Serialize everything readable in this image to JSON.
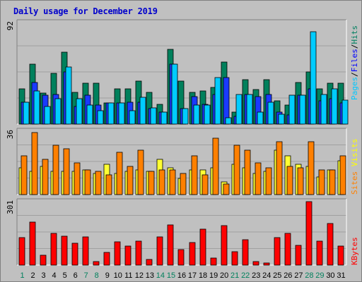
{
  "chart_data": {
    "type": "bar",
    "title": "Daily usage for December 2019",
    "categories": [
      "1",
      "2",
      "3",
      "4",
      "5",
      "6",
      "7",
      "8",
      "9",
      "10",
      "11",
      "12",
      "13",
      "14",
      "15",
      "16",
      "17",
      "18",
      "19",
      "20",
      "21",
      "22",
      "23",
      "24",
      "25",
      "26",
      "27",
      "28",
      "29",
      "30",
      "31"
    ],
    "weekend_days": [
      "1",
      "7",
      "8",
      "14",
      "15",
      "21",
      "22",
      "28",
      "29"
    ],
    "panels": [
      {
        "ymax_label": "92",
        "ymax": 92,
        "legend": [
          {
            "text": "Pages",
            "color": "#00c8ff"
          },
          {
            "text": "Files",
            "color": "#0000ff"
          },
          {
            "text": "Hits",
            "color": "#008060"
          }
        ],
        "series": [
          {
            "name": "Hits",
            "color": "#00805c",
            "values": [
              32,
              54,
              28,
              46,
              65,
              29,
              37,
              37,
              19,
              32,
              32,
              39,
              29,
              18,
              68,
              39,
              29,
              30,
              33,
              56,
              11,
              40,
              31,
              40,
              21,
              17,
              38,
              47,
              32,
              37,
              37
            ]
          },
          {
            "name": "Files",
            "color": "#1a3aff",
            "values": [
              20,
              38,
              26,
              27,
              47,
              16,
              26,
              17,
              19,
              19,
              20,
              20,
              14,
              11,
              54,
              14,
              25,
              18,
              27,
              42,
              7,
              27,
              25,
              27,
              11,
              8,
              26,
              32,
              21,
              23,
              19
            ]
          },
          {
            "name": "Pages",
            "color": "#00ccff",
            "values": [
              20,
              30,
              16,
              23,
              52,
              23,
              17,
              12,
              19,
              19,
              12,
              24,
              15,
              11,
              54,
              14,
              17,
              17,
              42,
              6,
              27,
              27,
              11,
              20,
              9,
              26,
              26,
              84,
              27,
              32,
              22
            ]
          }
        ]
      },
      {
        "ymax_label": "36",
        "ymax": 36,
        "legend": [
          {
            "text": "Sites",
            "color": "#ff8000"
          },
          {
            "text": "/",
            "color": "#c0c0c0"
          },
          {
            "text": "Visits",
            "color": "#ffff00"
          }
        ],
        "series": [
          {
            "name": "Visits",
            "color": "#ffff33",
            "values": [
              15,
              13,
              16,
              13,
              13,
              13,
              14,
              12,
              17,
              12,
              13,
              14,
              13,
              20,
              15,
              9,
              14,
              14,
              15,
              7,
              17,
              15,
              12,
              13,
              25,
              22,
              17,
              16,
              10,
              14,
              19
            ]
          },
          {
            "name": "Sites",
            "color": "#ff8000",
            "values": [
              22,
              35,
              20,
              28,
              26,
              18,
              14,
              13,
              11,
              24,
              16,
              25,
              13,
              14,
              14,
              12,
              22,
              11,
              32,
              6,
              28,
              25,
              18,
              15,
              30,
              16,
              15,
              30,
              14,
              14,
              22
            ]
          }
        ]
      },
      {
        "ymax_label": "301",
        "ymax": 301,
        "legend": [
          {
            "text": "KBytes",
            "color": "#ff0000"
          }
        ],
        "series": [
          {
            "name": "KBytes",
            "color": "#ff0000",
            "values": [
              130,
              204,
              48,
              150,
              138,
              104,
              133,
              16,
              60,
              110,
              90,
              114,
              28,
              134,
              190,
              74,
              108,
              170,
              35,
              188,
              64,
              120,
              16,
              10,
              130,
              152,
              94,
              301,
              114,
              196,
              90
            ]
          }
        ]
      }
    ]
  }
}
